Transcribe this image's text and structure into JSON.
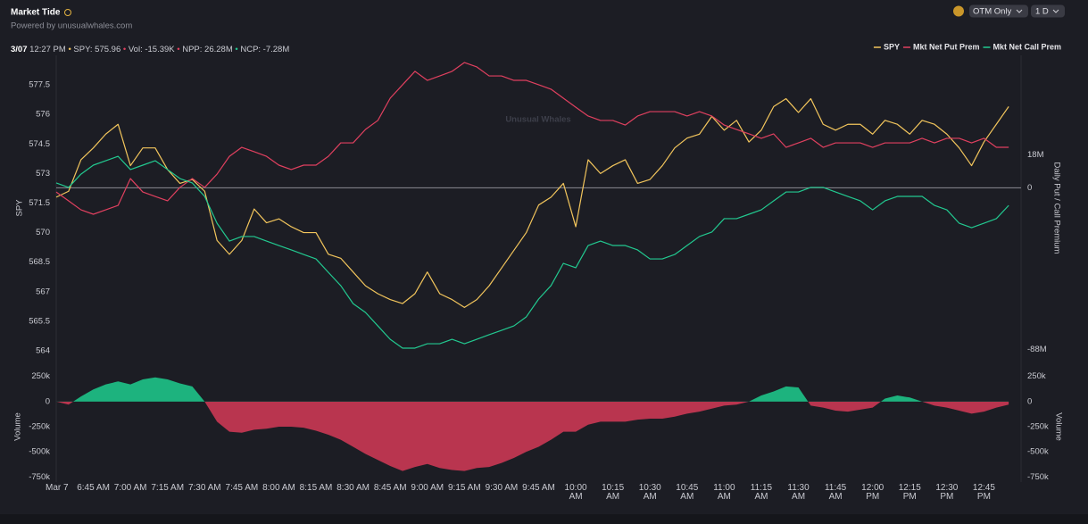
{
  "header": {
    "title": "Market Tide",
    "subtitle": "Powered by unusualwhales.com",
    "filters": [
      "OTM Only",
      "1 D"
    ],
    "date": "3/07",
    "time": "12:27 PM",
    "readout": [
      "SPY: 575.96",
      "Vol: -15.39K",
      "NPP: 26.28M",
      "NCP: -7.28M"
    ],
    "watermark": "Unusual Whales"
  },
  "chart_data": [
    {
      "type": "line",
      "ylabel": "SPY",
      "y2label": "Daily Put / Call Premium",
      "x": [
        390,
        395,
        400,
        405,
        410,
        415,
        420,
        425,
        430,
        435,
        440,
        445,
        450,
        455,
        460,
        465,
        470,
        475,
        480,
        485,
        490,
        495,
        500,
        505,
        510,
        515,
        520,
        525,
        530,
        535,
        540,
        545,
        550,
        555,
        560,
        565,
        570,
        575,
        580,
        585,
        590,
        595,
        600,
        605,
        610,
        615,
        620,
        625,
        630,
        635,
        640,
        645,
        650,
        655,
        660,
        665,
        670,
        675,
        680,
        685,
        690,
        695,
        700,
        705,
        710,
        715,
        720,
        725,
        730,
        735,
        740,
        745,
        750,
        755,
        760,
        765,
        770,
        775
      ],
      "xlim": [
        390,
        780
      ],
      "ylim": [
        563.5,
        579
      ],
      "yticks": [
        564,
        565.5,
        567,
        568.5,
        570,
        571.5,
        573,
        574.5,
        576,
        577.5
      ],
      "y2lim": [
        -94,
        72
      ],
      "y2ticks": [
        {
          "value": 18,
          "label": "18M"
        },
        0,
        {
          "value": -88,
          "label": "-88M"
        }
      ],
      "legend": "top-right",
      "series": [
        {
          "name": "SPY",
          "color": "#f2c55c",
          "axis": "y",
          "values": [
            571.8,
            572.1,
            573.7,
            574.3,
            575.0,
            575.5,
            573.4,
            574.3,
            574.3,
            573.2,
            572.5,
            572.7,
            572.1,
            569.6,
            568.9,
            569.6,
            571.2,
            570.5,
            570.7,
            570.3,
            570.0,
            570.0,
            568.9,
            568.7,
            568.0,
            567.3,
            566.9,
            566.6,
            566.4,
            566.9,
            568.0,
            566.9,
            566.6,
            566.2,
            566.6,
            567.3,
            568.2,
            569.1,
            570.0,
            571.4,
            571.8,
            572.5,
            570.3,
            573.7,
            573.0,
            573.4,
            573.7,
            572.5,
            572.7,
            573.4,
            574.3,
            574.8,
            575.0,
            575.9,
            575.2,
            575.7,
            574.6,
            575.2,
            576.4,
            576.8,
            576.1,
            576.8,
            575.5,
            575.2,
            575.5,
            575.5,
            575.0,
            575.7,
            575.5,
            575.0,
            575.7,
            575.5,
            575.0,
            574.3,
            573.4,
            574.6,
            575.5,
            576.4
          ]
        },
        {
          "name": "Mkt Net Put Prem",
          "color": "#e0405f",
          "axis": "y2",
          "values": [
            -2.3,
            -7.1,
            -12,
            -14.4,
            -12,
            -9.6,
            5,
            -2.3,
            -4.7,
            -7.1,
            0.2,
            5,
            0.2,
            7.4,
            17.1,
            22,
            19.6,
            17.1,
            12.3,
            9.9,
            12.3,
            12.3,
            17.1,
            24.4,
            24.4,
            31.7,
            36.6,
            48.7,
            56,
            63.3,
            58.4,
            60.8,
            63.3,
            68.1,
            65.7,
            60.8,
            60.8,
            58.4,
            58.4,
            56,
            53.6,
            48.7,
            43.8,
            39,
            36.6,
            36.6,
            34.1,
            39,
            41.4,
            41.4,
            41.4,
            39,
            41.4,
            39,
            34.1,
            31.7,
            29.3,
            26.9,
            29.3,
            22,
            24.4,
            26.9,
            22,
            24.4,
            24.4,
            24.4,
            22,
            24.4,
            24.4,
            24.4,
            26.9,
            24.4,
            26.9,
            26.9,
            24.4,
            26.9,
            22,
            22
          ]
        },
        {
          "name": "Mkt Net Call Prem",
          "color": "#22c990",
          "axis": "y2",
          "values": [
            2.6,
            0.2,
            7.4,
            12.3,
            14.7,
            17.1,
            9.9,
            12.3,
            14.7,
            9.9,
            5,
            2.6,
            -4.7,
            -19.3,
            -29,
            -26.5,
            -26.5,
            -29,
            -31.4,
            -33.8,
            -36.3,
            -38.7,
            -46,
            -53.2,
            -63,
            -67.8,
            -75.1,
            -82.4,
            -87.2,
            -87.2,
            -84.8,
            -84.8,
            -82.4,
            -84.8,
            -82.4,
            -79.9,
            -77.5,
            -75.1,
            -70.2,
            -60.5,
            -53.2,
            -41.1,
            -43.5,
            -31.4,
            -29,
            -31.4,
            -31.4,
            -33.8,
            -38.7,
            -38.7,
            -36.3,
            -31.4,
            -26.5,
            -24.1,
            -16.8,
            -16.8,
            -14.4,
            -12,
            -7.1,
            -2.3,
            -2.3,
            0.2,
            0.2,
            -2.3,
            -4.7,
            -7.1,
            -12,
            -7.1,
            -4.7,
            -4.7,
            -4.7,
            -9.6,
            -12,
            -19.3,
            -21.7,
            -19.3,
            -16.8,
            -9.6
          ]
        }
      ]
    },
    {
      "type": "area",
      "ylabel": "Volume",
      "x": [
        390,
        395,
        400,
        405,
        410,
        415,
        420,
        425,
        430,
        435,
        440,
        445,
        450,
        455,
        460,
        465,
        470,
        475,
        480,
        485,
        490,
        495,
        500,
        505,
        510,
        515,
        520,
        525,
        530,
        535,
        540,
        545,
        550,
        555,
        560,
        565,
        570,
        575,
        580,
        585,
        590,
        595,
        600,
        605,
        610,
        615,
        620,
        625,
        630,
        635,
        640,
        645,
        650,
        655,
        660,
        665,
        670,
        675,
        680,
        685,
        690,
        695,
        700,
        705,
        710,
        715,
        720,
        725,
        730,
        735,
        740,
        745,
        750,
        755,
        760,
        765,
        770,
        775
      ],
      "xlim": [
        390,
        780
      ],
      "xticks": [
        {
          "value": 390,
          "label": "Mar 7"
        },
        {
          "value": 405,
          "label": "6:45 AM"
        },
        {
          "value": 420,
          "label": "7:00 AM"
        },
        {
          "value": 435,
          "label": "7:15 AM"
        },
        {
          "value": 450,
          "label": "7:30 AM"
        },
        {
          "value": 465,
          "label": "7:45 AM"
        },
        {
          "value": 480,
          "label": "8:00 AM"
        },
        {
          "value": 495,
          "label": "8:15 AM"
        },
        {
          "value": 510,
          "label": "8:30 AM"
        },
        {
          "value": 525,
          "label": "8:45 AM"
        },
        {
          "value": 540,
          "label": "9:00 AM"
        },
        {
          "value": 555,
          "label": "9:15 AM"
        },
        {
          "value": 570,
          "label": "9:30 AM"
        },
        {
          "value": 585,
          "label": "9:45 AM"
        },
        {
          "value": 600,
          "label": "10:00 AM"
        },
        {
          "value": 615,
          "label": "10:15 AM"
        },
        {
          "value": 630,
          "label": "10:30 AM"
        },
        {
          "value": 645,
          "label": "10:45 AM"
        },
        {
          "value": 660,
          "label": "11:00 AM"
        },
        {
          "value": 675,
          "label": "11:15 AM"
        },
        {
          "value": 690,
          "label": "11:30 AM"
        },
        {
          "value": 705,
          "label": "11:45 AM"
        },
        {
          "value": 720,
          "label": "12:00 PM"
        },
        {
          "value": 735,
          "label": "12:15 PM"
        },
        {
          "value": 750,
          "label": "12:30 PM"
        },
        {
          "value": 765,
          "label": "12:45 PM"
        }
      ],
      "ylim": [
        -800000,
        300000
      ],
      "yticks": [
        {
          "value": 250000,
          "label": "250k"
        },
        0,
        {
          "value": -250000,
          "label": "-250k"
        },
        {
          "value": -500000,
          "label": "-500k"
        },
        {
          "value": -750000,
          "label": "-750k"
        }
      ],
      "positive_color": "#1db37e",
      "negative_color": "#b9354f",
      "values": [
        0,
        -30000,
        50000,
        120000,
        170000,
        200000,
        170000,
        220000,
        240000,
        220000,
        180000,
        150000,
        0,
        -200000,
        -300000,
        -310000,
        -280000,
        -270000,
        -250000,
        -250000,
        -260000,
        -290000,
        -330000,
        -380000,
        -450000,
        -520000,
        -580000,
        -640000,
        -690000,
        -650000,
        -620000,
        -660000,
        -680000,
        -690000,
        -660000,
        -650000,
        -610000,
        -560000,
        -500000,
        -450000,
        -380000,
        -300000,
        -300000,
        -230000,
        -200000,
        -200000,
        -200000,
        -180000,
        -170000,
        -170000,
        -150000,
        -120000,
        -100000,
        -70000,
        -40000,
        -30000,
        0,
        60000,
        100000,
        150000,
        140000,
        -40000,
        -60000,
        -90000,
        -100000,
        -80000,
        -60000,
        30000,
        60000,
        40000,
        0,
        -40000,
        -60000,
        -90000,
        -120000,
        -100000,
        -60000,
        -30000
      ]
    }
  ]
}
